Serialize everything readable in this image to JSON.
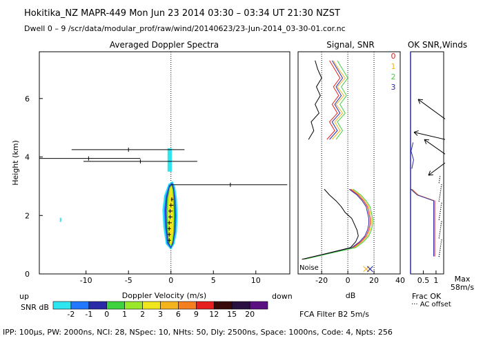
{
  "header": {
    "line1": "Hokitika_NZ   MAPR-449   Mon Jun 23 2014 03:30 – 03:34 UT 21:30 NZST",
    "line2": "Dwell   0 –   9    /scr/data/modular_prof/raw/wind/20140623/23-Jun-2014_03-30-01.cor.nc"
  },
  "footer": "IPP: 100μs,   PW: 2000ns,   NCI:   28,   NSpec: 10,  NHts: 50,   Dly: 2500ns,   Space: 1000ns,   Code: 4,   Npts: 256",
  "colors": {
    "snr_palette": [
      "#2ee6f0",
      "#2277ff",
      "#2a2aa8",
      "#3fd23f",
      "#9be82a",
      "#f0e61e",
      "#f5b41e",
      "#f57f1e",
      "#e61e1e",
      "#3a0a0a",
      "#2a1040",
      "#5a1080"
    ],
    "series0": "#e61e1e",
    "series1": "#f5b41e",
    "series2": "#3fd23f",
    "series3": "#2a2aa8"
  },
  "chart_data": [
    {
      "type": "heatmap",
      "title": "Averaged Doppler Spectra",
      "xlabel": "Doppler Velocity (m/s)",
      "ylabel": "Height (km)",
      "xlim": [
        -15.5,
        14
      ],
      "ylim": [
        0,
        7.6
      ],
      "x_ticks": [
        -10,
        -5,
        0,
        5,
        10
      ],
      "y_ticks": [
        0,
        2,
        4,
        6
      ],
      "left_note": "up",
      "right_note": "down",
      "colorbar": {
        "label": "SNR dB",
        "ticks": [
          "-2",
          "-1",
          "0",
          "1",
          "2",
          "3",
          "6",
          "9",
          "12",
          "15",
          "20"
        ]
      },
      "moments": [
        {
          "h": 4.25,
          "v": -5.0,
          "lo": -11.7,
          "hi": 1.6
        },
        {
          "h": 3.95,
          "v": -9.7,
          "lo": -17.0,
          "hi": -3.6
        },
        {
          "h": 3.85,
          "v": -3.6,
          "lo": -10.3,
          "hi": 3.1
        },
        {
          "h": 3.05,
          "v": 7.0,
          "lo": 0.0,
          "hi": 13.7
        },
        {
          "h": 2.55,
          "v": 0.1,
          "lo": 0.0,
          "hi": 0.3
        },
        {
          "h": 2.35,
          "v": 0.0,
          "lo": -0.2,
          "hi": 0.3
        },
        {
          "h": 2.15,
          "v": -0.1,
          "lo": -0.3,
          "hi": 0.2
        },
        {
          "h": 1.95,
          "v": -0.1,
          "lo": -0.3,
          "hi": 0.2
        },
        {
          "h": 1.75,
          "v": -0.2,
          "lo": -0.4,
          "hi": 0.1
        },
        {
          "h": 1.55,
          "v": -0.2,
          "lo": -0.4,
          "hi": 0.0
        },
        {
          "h": 1.35,
          "v": -0.2,
          "lo": -0.4,
          "hi": 0.0
        },
        {
          "h": 1.15,
          "v": -0.2,
          "lo": -0.4,
          "hi": 0.0
        }
      ],
      "echo_blob": [
        {
          "h": 3.2,
          "v": 0.2
        },
        {
          "h": 3.0,
          "v": 0.5
        },
        {
          "h": 2.6,
          "v": 0.7
        },
        {
          "h": 2.0,
          "v": 0.8
        },
        {
          "h": 1.4,
          "v": 0.7
        },
        {
          "h": 1.0,
          "v": 0.4
        },
        {
          "h": 0.8,
          "v": 0.0
        },
        {
          "h": 1.0,
          "v": -0.6
        },
        {
          "h": 1.6,
          "v": -0.9
        },
        {
          "h": 2.2,
          "v": -1.0
        },
        {
          "h": 2.7,
          "v": -0.8
        },
        {
          "h": 3.1,
          "v": -0.3
        }
      ],
      "echo_patch": [
        {
          "h": 4.3,
          "v": -0.4
        },
        {
          "h": 4.3,
          "v": 0.1
        },
        {
          "h": 3.5,
          "v": 0.1
        },
        {
          "h": 3.5,
          "v": -0.4
        }
      ],
      "echo_speck": [
        {
          "h": 1.85,
          "v": -13.0
        }
      ]
    },
    {
      "type": "line",
      "title": "Signal, SNR",
      "xlabel": "dB",
      "xlim": [
        -38,
        40
      ],
      "ylim": [
        0,
        7.6
      ],
      "x_ticks": [
        -20,
        0,
        20,
        40
      ],
      "guides_db": [
        -20,
        0,
        20
      ],
      "noise_label": "Noise",
      "legend_labels": [
        "0",
        "1",
        "2",
        "3"
      ],
      "series": [
        {
          "name": "0",
          "h": [
            0.5,
            0.7,
            0.9,
            1.1,
            1.3,
            1.5,
            1.7,
            1.9,
            2.1,
            2.3,
            2.5,
            2.7,
            2.9
          ],
          "x": [
            -35,
            -16,
            4,
            10,
            14,
            16,
            17,
            17,
            16,
            15,
            12,
            8,
            2
          ]
        },
        {
          "name": "1",
          "h": [
            0.5,
            0.7,
            0.9,
            1.1,
            1.3,
            1.5,
            1.7,
            1.9,
            2.1,
            2.3,
            2.5,
            2.7,
            2.9
          ],
          "x": [
            -34,
            -15,
            5,
            11,
            15,
            17,
            18,
            18,
            17,
            16,
            13,
            9,
            3
          ]
        },
        {
          "name": "2",
          "h": [
            0.5,
            0.7,
            0.9,
            1.1,
            1.3,
            1.5,
            1.7,
            1.9,
            2.1,
            2.3,
            2.5,
            2.7,
            2.9
          ],
          "x": [
            -33,
            -14,
            6,
            12,
            16,
            18,
            19,
            19,
            18,
            17,
            14,
            10,
            4
          ]
        },
        {
          "name": "3",
          "h": [
            0.5,
            0.7,
            0.9,
            1.1,
            1.3,
            1.5,
            1.7,
            1.9,
            2.1,
            2.3,
            2.5,
            2.7,
            2.9
          ],
          "x": [
            -35,
            -16,
            3,
            9,
            13,
            15,
            16,
            16,
            15,
            14,
            11,
            7,
            1
          ]
        },
        {
          "name": "signal",
          "h": [
            0.5,
            0.7,
            0.9,
            1.1,
            1.3,
            1.5,
            1.7,
            1.9,
            2.1,
            2.3,
            2.5,
            2.7,
            2.9
          ],
          "x": [
            -35,
            -16,
            2,
            6,
            8,
            7,
            5,
            3,
            -2,
            -5,
            -9,
            -14,
            -18
          ]
        }
      ],
      "upper_series": [
        {
          "name": "0",
          "h": [
            4.6,
            4.9,
            5.2,
            5.5,
            5.8,
            6.1,
            6.4,
            6.7,
            7.0,
            7.3
          ],
          "x": [
            -16,
            -10,
            -14,
            -8,
            -12,
            -7,
            -11,
            -6,
            -10,
            -14
          ]
        },
        {
          "name": "1",
          "h": [
            4.6,
            4.9,
            5.2,
            5.5,
            5.8,
            6.1,
            6.4,
            6.7,
            7.0,
            7.3
          ],
          "x": [
            -12,
            -6,
            -10,
            -4,
            -9,
            -3,
            -8,
            -2,
            -7,
            -11
          ]
        },
        {
          "name": "2",
          "h": [
            4.6,
            4.9,
            5.2,
            5.5,
            5.8,
            6.1,
            6.4,
            6.7,
            7.0,
            7.3
          ],
          "x": [
            -9,
            -4,
            -8,
            -2,
            -6,
            -1,
            -5,
            0,
            -4,
            -8
          ]
        },
        {
          "name": "3",
          "h": [
            4.6,
            4.9,
            5.2,
            5.5,
            5.8,
            6.1,
            6.4,
            6.7,
            7.0,
            7.3
          ],
          "x": [
            -14,
            -8,
            -12,
            -6,
            -10,
            -5,
            -9,
            -4,
            -8,
            -12
          ]
        },
        {
          "name": "signal",
          "h": [
            4.6,
            4.9,
            5.2,
            5.5,
            5.8,
            6.1,
            6.4,
            6.7,
            7.0,
            7.3
          ],
          "x": [
            -30,
            -26,
            -28,
            -22,
            -25,
            -21,
            -24,
            -20,
            -23,
            -25
          ]
        }
      ],
      "marker": {
        "type": "x",
        "db": 14,
        "h": 0.05
      },
      "marker2": {
        "type": "x",
        "db": 17,
        "h": 0.05
      },
      "footer_note": "FCA Filter B2  5m/s"
    },
    {
      "type": "line",
      "title": "OK SNR,Winds",
      "xlabel": "Frac OK",
      "x_ticks": [
        "0.5",
        "1"
      ],
      "x_tick_values": [
        0.5,
        1.0
      ],
      "xlim": [
        0,
        1.3
      ],
      "ylim": [
        0,
        7.6
      ],
      "max_note": "Max",
      "max_value": "58m/s",
      "ac_note": "··· AC offset",
      "frac_ok_lower": [
        {
          "h": 0.6,
          "f": 0.95
        },
        {
          "h": 0.8,
          "f": 0.95
        },
        {
          "h": 1.0,
          "f": 0.95
        },
        {
          "h": 2.0,
          "f": 0.95
        },
        {
          "h": 2.5,
          "f": 0.95
        },
        {
          "h": 2.7,
          "f": 0.3
        },
        {
          "h": 2.9,
          "f": 0.05
        }
      ],
      "frac_ok_upper": [
        {
          "h": 3.6,
          "f": 0.05
        },
        {
          "h": 3.9,
          "f": 0.12
        },
        {
          "h": 4.2,
          "f": 0.02
        },
        {
          "h": 4.5,
          "f": 0.1
        }
      ],
      "winds": [
        {
          "h": 5.3,
          "dx": 1.3,
          "dy": 0.95
        },
        {
          "h": 4.6,
          "dx": 1.5,
          "dy": 0.35
        },
        {
          "h": 3.8,
          "dx": 0.8,
          "dy": -0.6
        },
        {
          "h": 4.1,
          "dx": 1.0,
          "dy": 0.7
        }
      ]
    }
  ]
}
